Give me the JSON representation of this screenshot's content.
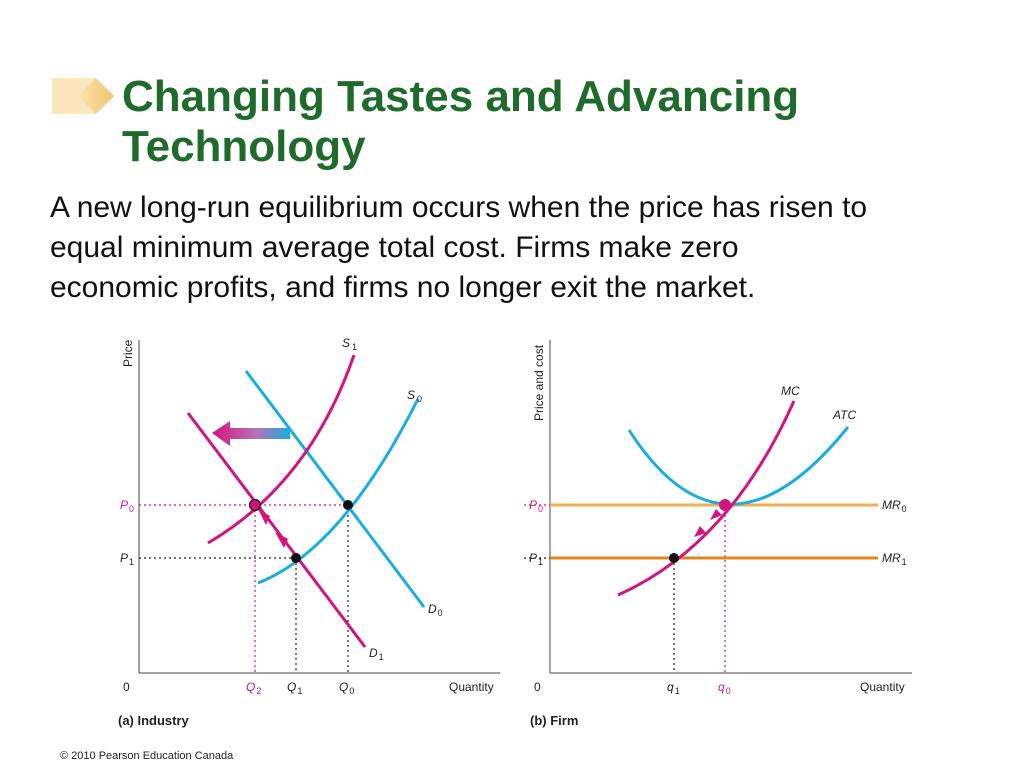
{
  "slide": {
    "title_lines": [
      "Changing Tastes and Advancing",
      "Technology"
    ],
    "body_lines": [
      "A new long-run equilibrium occurs when the price has risen to",
      "equal minimum average total cost. Firms make zero",
      "economic profits, and firms no longer exit the market."
    ],
    "footer": "© 2010 Pearson Education Canada",
    "colors": {
      "title": "#1f6b2c",
      "magenta": "#d4147d",
      "cyan": "#18aee0",
      "orange": "#f0a030",
      "dark_orange": "#e08820",
      "bullet": "#f3c46e"
    }
  },
  "panel_a": {
    "caption": "(a) Industry",
    "y_axis": "Price",
    "x_axis": "Quantity",
    "origin": "0",
    "curves": {
      "s1": [
        "S",
        "1"
      ],
      "s0": [
        "S",
        "0"
      ],
      "d0": [
        "D",
        "0"
      ],
      "d1": [
        "D",
        "1"
      ]
    },
    "price_labels": {
      "p0": [
        "P",
        "0"
      ],
      "p1": [
        "P",
        "1"
      ]
    },
    "quantity_labels": {
      "q2": [
        "Q",
        "2"
      ],
      "q1": [
        "Q",
        "1"
      ],
      "q0": [
        "Q",
        "0"
      ]
    }
  },
  "panel_b": {
    "caption": "(b) Firm",
    "y_axis": "Price and cost",
    "x_axis": "Quantity",
    "origin": "0",
    "curves": {
      "mc": "MC",
      "atc": "ATC",
      "mr0": [
        "MR",
        "0"
      ],
      "mr1": [
        "MR",
        "1"
      ]
    },
    "price_labels": {
      "p0": [
        "P",
        "0"
      ],
      "p1": [
        "P",
        "1"
      ]
    },
    "quantity_labels": {
      "q1": [
        "q",
        "1"
      ],
      "q0": [
        "q",
        "0"
      ]
    }
  }
}
